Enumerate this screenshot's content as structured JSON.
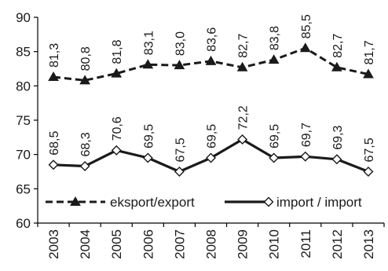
{
  "chart_data": {
    "type": "line",
    "categories": [
      "2003",
      "2004",
      "2005",
      "2006",
      "2007",
      "2008",
      "2009",
      "2010",
      "2011",
      "2012",
      "2013"
    ],
    "series": [
      {
        "name": "eksport/export",
        "values": [
          81.3,
          80.8,
          81.8,
          83.1,
          83.0,
          83.6,
          82.7,
          83.8,
          85.5,
          82.7,
          81.7
        ],
        "data_labels": [
          "81,3",
          "80,8",
          "81,8",
          "83,1",
          "83,0",
          "83,6",
          "82,7",
          "83,8",
          "85,5",
          "82,7",
          "81,7"
        ],
        "line_style": "dashed",
        "marker": "filled-triangle",
        "color": "#1a1a1a"
      },
      {
        "name": "import / import",
        "values": [
          68.5,
          68.3,
          70.6,
          69.5,
          67.5,
          69.5,
          72.2,
          69.5,
          69.7,
          69.3,
          67.5
        ],
        "data_labels": [
          "68,5",
          "68,3",
          "70,6",
          "69,5",
          "67,5",
          "69,5",
          "72,2",
          "69,5",
          "69,7",
          "69,3",
          "67,5"
        ],
        "line_style": "solid",
        "marker": "hollow-diamond",
        "color": "#1a1a1a"
      }
    ],
    "yticks": [
      "60",
      "65",
      "70",
      "75",
      "80",
      "85",
      "90"
    ],
    "ylim": [
      60,
      90
    ],
    "grid": false,
    "legend_position": "bottom-inside"
  }
}
